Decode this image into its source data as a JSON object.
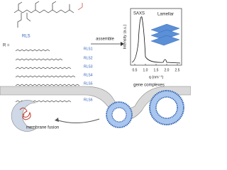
{
  "molecule": {
    "head_label": "RLS",
    "r_label": "R =",
    "chains": [
      "RLS1",
      "RLS2",
      "RLS3",
      "RLS4",
      "RLS5",
      "RLS6"
    ]
  },
  "arrow_label": "assemble",
  "saxs": {
    "title": "SAXS",
    "phase": "Lamellar",
    "y_label": "Intensity (a.u.)",
    "x_label": "q (nm⁻¹)",
    "xticks": [
      "0.5",
      "1.0",
      "1.5",
      "2.0",
      "2.5"
    ]
  },
  "labels": {
    "complexes": "gene complexes",
    "fusion": "membrane fusion"
  }
}
